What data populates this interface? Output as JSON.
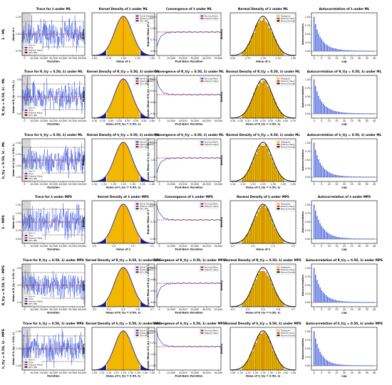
{
  "colors": {
    "trace": "#1f3fd6",
    "burn_in": "#c8c8c8",
    "mean": "#e02020",
    "hpd": "#111111",
    "density_fill": "#f0b800",
    "density_tail": "#1a1a80",
    "density_line": "#2a2aa8",
    "hist_bar": "#e8b000",
    "normal_curve": "#000000",
    "running_mean": "#1f3fd6",
    "acf_bar": "#1f3fd6"
  },
  "row_labels": [
    "λ - ML",
    "R_t(y = 0.50, λ) - ML",
    "h_t(y = 0.50, λ) - ML",
    "λ - MPS",
    "R_t(y = 0.50, λ) - MPS",
    "h_t(y = 0.50, λ) - MPS"
  ],
  "legends": {
    "trace": [
      "Burn-in",
      "Trace",
      "Posterior Mean",
      "95% HPD"
    ],
    "kde": [
      "Kernel Density",
      "Posterior Mean",
      "95% HPD"
    ],
    "conv": [
      "Running Mean",
      "Posterior Mean"
    ],
    "norm": [
      "Histogram",
      "Posterior Mean",
      "Normal Density"
    ]
  },
  "chart_data": [
    {
      "type": "line",
      "panel": "trace",
      "row": 0,
      "title": "Trace for λ under ML",
      "xlabel": "Iteration",
      "ylabel": "Value of λ",
      "x_ticks": [
        "0",
        "10,000",
        "20,000",
        "30,000",
        "40,000",
        "50,000",
        "60,000"
      ],
      "y_ticks": [
        "0.75",
        "1.00",
        "1.25"
      ],
      "mean": 1.05,
      "hpd": [
        0.82,
        1.3
      ]
    },
    {
      "type": "area",
      "panel": "kde",
      "row": 0,
      "title": "Kernel Density of λ under ML",
      "xlabel": "Value of λ",
      "ylabel": "Density",
      "x_ticks": [
        "0.50",
        "0.75",
        "1.00",
        "1.25",
        "1.50"
      ],
      "mean": 1.05,
      "hpd": [
        0.82,
        1.3
      ]
    },
    {
      "type": "line",
      "panel": "conv",
      "row": 0,
      "title": "Convergence of λ under ML",
      "xlabel": "Post-Burn Iteration",
      "ylabel": "Ergodic Mean of λ",
      "x_ticks": [
        "0",
        "10,000",
        "20,000",
        "30,000",
        "40,000",
        "50,000"
      ],
      "y_ticks": [
        "0.50",
        "0.75",
        "1.00",
        "1.25"
      ],
      "mean": 1.05
    },
    {
      "type": "bar",
      "panel": "norm",
      "row": 0,
      "title": "Normal Density of λ under ML",
      "xlabel": "Value of λ",
      "ylabel": "Density",
      "x_ticks": [
        "0.50",
        "0.75",
        "1.00",
        "1.25",
        "1.50"
      ],
      "mean": 1.05
    },
    {
      "type": "bar",
      "panel": "acf",
      "row": 0,
      "title": "Autocorrelation of λ under ML",
      "xlabel": "Lag",
      "ylabel": "Autocorrelation",
      "x_ticks": [
        "0",
        "5",
        "10",
        "15",
        "20",
        "25",
        "30",
        "35",
        "40"
      ],
      "y_ticks": [
        "0.00",
        "0.25",
        "0.50",
        "0.75",
        "1.00"
      ],
      "values": [
        1.0,
        0.78,
        0.62,
        0.5,
        0.41,
        0.34,
        0.28,
        0.23,
        0.19,
        0.16,
        0.13,
        0.11,
        0.09,
        0.08,
        0.07,
        0.06,
        0.05,
        0.04,
        0.035,
        0.03,
        0.025,
        0.02,
        0.018,
        0.015,
        0.013,
        0.011,
        0.01,
        0.009,
        0.008,
        0.007,
        0.006,
        0.005,
        0.005,
        0.004,
        0.004,
        0.003,
        0.003,
        0.003,
        0.002,
        0.002,
        0.002
      ]
    },
    {
      "type": "line",
      "panel": "trace",
      "row": 1,
      "title": "Trace for R_t(y = 0.50, λ) under ML",
      "xlabel": "Iteration",
      "ylabel": "Value of R_t(y = 0.50, λ)",
      "x_ticks": [
        "0",
        "10,000",
        "20,000",
        "30,000",
        "40,000",
        "50,000",
        "60,000"
      ],
      "y_ticks": [
        "0.4",
        "0.5",
        "0.6"
      ],
      "mean": 0.47,
      "hpd": [
        0.4,
        0.55
      ]
    },
    {
      "type": "area",
      "panel": "kde",
      "row": 1,
      "title": "Kernel Density of R_t(y = 0.50, λ) under ML",
      "xlabel": "Value of R_t(y = 0.50, λ)",
      "ylabel": "Density",
      "x_ticks": [
        "0.30",
        "0.35",
        "0.40",
        "0.45",
        "0.50",
        "0.55",
        "0.60",
        "0.65"
      ],
      "mean": 0.47,
      "hpd": [
        0.4,
        0.55
      ]
    },
    {
      "type": "line",
      "panel": "conv",
      "row": 1,
      "title": "Convergence of R_t(y = 0.50, λ) under ML",
      "xlabel": "Post-Burn Iteration",
      "ylabel": "Ergodic Mean of R_t(y = 0.50, λ)",
      "x_ticks": [
        "0",
        "10,000",
        "20,000",
        "30,000",
        "40,000",
        "50,000"
      ],
      "y_ticks": [
        "0.45",
        "0.50",
        "0.55",
        "0.60"
      ],
      "mean": 0.47
    },
    {
      "type": "bar",
      "panel": "norm",
      "row": 1,
      "title": "Normal Density of R_t(y = 0.50, λ) under ML",
      "xlabel": "Value of R_t(y = 0.50, λ)",
      "ylabel": "Density",
      "x_ticks": [
        "0.30",
        "0.35",
        "0.40",
        "0.45",
        "0.50",
        "0.55",
        "0.60",
        "0.65",
        "0.70"
      ],
      "mean": 0.47
    },
    {
      "type": "bar",
      "panel": "acf",
      "row": 1,
      "title": "Autocorrelation of R_t(y = 0.50, λ) under ML",
      "xlabel": "Lag",
      "ylabel": "Autocorrelation",
      "x_ticks": [
        "0",
        "5",
        "10",
        "15",
        "20",
        "25",
        "30",
        "35",
        "40"
      ],
      "y_ticks": [
        "0.00",
        "0.25",
        "0.50",
        "0.75",
        "1.00"
      ],
      "values": [
        1.0,
        0.8,
        0.64,
        0.52,
        0.42,
        0.35,
        0.29,
        0.24,
        0.2,
        0.17,
        0.14,
        0.12,
        0.1,
        0.085,
        0.072,
        0.062,
        0.053,
        0.045,
        0.038,
        0.033,
        0.028,
        0.024,
        0.02,
        0.017,
        0.015,
        0.013,
        0.011,
        0.01,
        0.009,
        0.008,
        0.007,
        0.006,
        0.005,
        0.005,
        0.004,
        0.004,
        0.003,
        0.003,
        0.003,
        0.002,
        0.002
      ]
    },
    {
      "type": "line",
      "panel": "trace",
      "row": 2,
      "title": "Trace for h_t(y = 0.50, λ) under ML",
      "xlabel": "Iteration",
      "ylabel": "Value of h_t(y = 0.50, λ)",
      "x_ticks": [
        "0",
        "10,000",
        "20,000",
        "30,000",
        "40,000",
        "50,000",
        "60,000"
      ],
      "y_ticks": [
        "1.15",
        "1.20",
        "1.25",
        "1.30"
      ],
      "mean": 1.22,
      "hpd": [
        1.15,
        1.29
      ]
    },
    {
      "type": "area",
      "panel": "kde",
      "row": 2,
      "title": "Kernel Density of h_t(y = 0.50, λ) under ML",
      "xlabel": "Value of h_t(y = 0.50, λ)",
      "ylabel": "Density",
      "x_ticks": [
        "1.10",
        "1.15",
        "1.20",
        "1.25",
        "1.30",
        "1.35",
        "1.40"
      ],
      "mean": 1.22,
      "hpd": [
        1.15,
        1.29
      ]
    },
    {
      "type": "line",
      "panel": "conv",
      "row": 2,
      "title": "Convergence of h_t(y = 0.50, λ) under ML",
      "xlabel": "Post-Burn Iteration",
      "ylabel": "Ergodic Mean of h_t(y = 0.50, λ)",
      "x_ticks": [
        "0",
        "10,000",
        "20,000",
        "30,000",
        "40,000",
        "50,000"
      ],
      "y_ticks": [
        "1.20",
        "1.22",
        "1.24"
      ],
      "mean": 1.22
    },
    {
      "type": "bar",
      "panel": "norm",
      "row": 2,
      "title": "Normal Density of h_t(y = 0.50, λ) under ML",
      "xlabel": "Value of h_t(y = 0.50, λ)",
      "ylabel": "Density",
      "x_ticks": [
        "1.10",
        "1.15",
        "1.20",
        "1.25",
        "1.30",
        "1.35",
        "1.40"
      ],
      "mean": 1.22
    },
    {
      "type": "bar",
      "panel": "acf",
      "row": 2,
      "title": "Autocorrelation of h_t(y = 0.50, λ) under ML",
      "xlabel": "Lag",
      "ylabel": "Autocorrelation",
      "x_ticks": [
        "0",
        "5",
        "10",
        "15",
        "20",
        "25",
        "30",
        "35",
        "40"
      ],
      "y_ticks": [
        "0.00",
        "0.25",
        "0.50",
        "0.75",
        "1.00"
      ],
      "values": [
        1.0,
        0.79,
        0.63,
        0.51,
        0.41,
        0.34,
        0.28,
        0.23,
        0.19,
        0.16,
        0.13,
        0.11,
        0.09,
        0.075,
        0.063,
        0.053,
        0.045,
        0.038,
        0.032,
        0.027,
        0.023,
        0.019,
        0.016,
        0.014,
        0.012,
        0.01,
        0.009,
        0.008,
        0.007,
        0.006,
        0.005,
        0.005,
        0.004,
        0.004,
        0.003,
        0.003,
        0.003,
        0.002,
        0.002,
        0.002,
        0.002
      ]
    },
    {
      "type": "line",
      "panel": "trace",
      "row": 3,
      "title": "Trace for λ under MPS",
      "xlabel": "Iteration",
      "ylabel": "Value of λ",
      "x_ticks": [
        "0",
        "10,000",
        "20,000",
        "30,000",
        "40,000",
        "50,000",
        "60,000"
      ],
      "y_ticks": [
        "0.50",
        "0.75",
        "1.00",
        "1.25",
        "1.50"
      ],
      "mean": 0.98,
      "hpd": [
        0.72,
        1.25
      ]
    },
    {
      "type": "area",
      "panel": "kde",
      "row": 3,
      "title": "Kernel Density of λ under MPS",
      "xlabel": "Value of λ",
      "ylabel": "Density",
      "x_ticks": [
        "0.5",
        "1.0",
        "1.5",
        "2.0"
      ],
      "mean": 0.98,
      "hpd": [
        0.72,
        1.25
      ]
    },
    {
      "type": "line",
      "panel": "conv",
      "row": 3,
      "title": "Convergence of λ under MPS",
      "xlabel": "Post-Burn Iteration",
      "ylabel": "Ergodic Mean of λ",
      "x_ticks": [
        "0",
        "10,000",
        "20,000",
        "30,000",
        "40,000",
        "50,000"
      ],
      "y_ticks": [
        "0.50",
        "0.75",
        "1.00"
      ],
      "mean": 0.98
    },
    {
      "type": "bar",
      "panel": "norm",
      "row": 3,
      "title": "Normal Density of λ under MPS",
      "xlabel": "Value of λ",
      "ylabel": "Density",
      "x_ticks": [
        "0.5",
        "1.0",
        "1.5",
        "2.0"
      ],
      "mean": 0.98
    },
    {
      "type": "bar",
      "panel": "acf",
      "row": 3,
      "title": "Autocorrelation of λ under MPS",
      "xlabel": "Lag",
      "ylabel": "Autocorrelation",
      "x_ticks": [
        "0",
        "5",
        "10",
        "15",
        "20",
        "25",
        "30",
        "35",
        "40"
      ],
      "y_ticks": [
        "0.00",
        "0.25",
        "0.50",
        "0.75",
        "1.00"
      ],
      "values": [
        1.0,
        0.82,
        0.67,
        0.55,
        0.45,
        0.37,
        0.31,
        0.26,
        0.21,
        0.18,
        0.15,
        0.12,
        0.1,
        0.085,
        0.07,
        0.06,
        0.05,
        0.042,
        0.035,
        0.03,
        0.025,
        0.021,
        0.018,
        0.015,
        0.013,
        0.011,
        0.009,
        0.008,
        0.007,
        0.006,
        0.005,
        0.005,
        0.004,
        0.004,
        0.003,
        0.003,
        0.003,
        0.002,
        0.002,
        0.002,
        0.002
      ]
    },
    {
      "type": "line",
      "panel": "trace",
      "row": 4,
      "title": "Trace for R_t(y = 0.50, λ) under MPS",
      "xlabel": "Iteration",
      "ylabel": "Value of R_t(y = 0.50, λ)",
      "x_ticks": [
        "0",
        "10,000",
        "20,000",
        "30,000",
        "40,000",
        "50,000",
        "60,000"
      ],
      "y_ticks": [
        "0.4",
        "0.5",
        "0.6"
      ],
      "mean": 0.49,
      "hpd": [
        0.41,
        0.57
      ]
    },
    {
      "type": "area",
      "panel": "kde",
      "row": 4,
      "title": "Kernel Density of R_t(y = 0.50, λ) under MPS",
      "xlabel": "Value of R_t(y = 0.50, λ)",
      "ylabel": "Density",
      "x_ticks": [
        "0.3",
        "0.4",
        "0.5",
        "0.6",
        "0.7"
      ],
      "mean": 0.49,
      "hpd": [
        0.41,
        0.57
      ]
    },
    {
      "type": "line",
      "panel": "conv",
      "row": 4,
      "title": "Convergence of R_t(y = 0.50, λ) under MPS",
      "xlabel": "Post-Burn Iteration",
      "ylabel": "Ergodic Mean of R_t(y = 0.50, λ)",
      "x_ticks": [
        "0",
        "10,000",
        "20,000",
        "30,000",
        "40,000",
        "50,000"
      ],
      "y_ticks": [
        "0.50",
        "0.55",
        "0.60",
        "0.65"
      ],
      "mean": 0.49
    },
    {
      "type": "bar",
      "panel": "norm",
      "row": 4,
      "title": "Normal Density of R_t(y = 0.50, λ) under MPS",
      "xlabel": "Value of R_t(y = 0.50, λ)",
      "ylabel": "Density",
      "x_ticks": [
        "0.3",
        "0.4",
        "0.5",
        "0.6",
        "0.7"
      ],
      "mean": 0.49
    },
    {
      "type": "bar",
      "panel": "acf",
      "row": 4,
      "title": "Autocorrelation of R_t(y = 0.50, λ) under MPS",
      "xlabel": "Lag",
      "ylabel": "Autocorrelation",
      "x_ticks": [
        "0",
        "5",
        "10",
        "15",
        "20",
        "25",
        "30",
        "35",
        "40"
      ],
      "y_ticks": [
        "0.00",
        "0.25",
        "0.50",
        "0.75",
        "1.00"
      ],
      "values": [
        1.0,
        0.8,
        0.65,
        0.53,
        0.43,
        0.35,
        0.29,
        0.24,
        0.2,
        0.16,
        0.13,
        0.11,
        0.09,
        0.075,
        0.062,
        0.052,
        0.043,
        0.036,
        0.03,
        0.025,
        0.021,
        0.018,
        0.015,
        0.013,
        0.011,
        0.009,
        0.008,
        0.007,
        0.006,
        0.005,
        0.005,
        0.004,
        0.004,
        0.003,
        0.003,
        0.003,
        0.002,
        0.002,
        0.002,
        0.002,
        0.001
      ]
    },
    {
      "type": "line",
      "panel": "trace",
      "row": 5,
      "title": "Trace for h_t(y = 0.50, λ) under MPS",
      "xlabel": "Iteration",
      "ylabel": "Value of h_t(y = 0.50, λ)",
      "x_ticks": [
        "0",
        "10,000",
        "20,000",
        "30,000",
        "40,000",
        "50,000",
        "60,000"
      ],
      "y_ticks": [
        "1.20",
        "1.25",
        "1.30"
      ],
      "mean": 1.24,
      "hpd": [
        1.17,
        1.31
      ]
    },
    {
      "type": "area",
      "panel": "kde",
      "row": 5,
      "title": "Kernel Density of h_t(y = 0.50, λ) under MPS",
      "xlabel": "Value of h_t(y = 0.50, λ)",
      "ylabel": "Density",
      "x_ticks": [
        "1.05",
        "1.10",
        "1.15",
        "1.20",
        "1.25",
        "1.30",
        "1.35",
        "1.40",
        "1.45"
      ],
      "mean": 1.24,
      "hpd": [
        1.17,
        1.31
      ]
    },
    {
      "type": "line",
      "panel": "conv",
      "row": 5,
      "title": "Convergence of h_t(y = 0.50, λ) under MPS",
      "xlabel": "Post-Burn Iteration",
      "ylabel": "Ergodic Mean of h_t(y = 0.50, λ)",
      "x_ticks": [
        "0",
        "10,000",
        "20,000",
        "30,000",
        "40,000",
        "50,000"
      ],
      "y_ticks": [
        "1.20",
        "1.22",
        "1.24",
        "1.26"
      ],
      "mean": 1.24
    },
    {
      "type": "bar",
      "panel": "norm",
      "row": 5,
      "title": "Normal Density of h_t(y = 0.50, λ) under MPS",
      "xlabel": "Value of h_t(y = 0.50, λ)",
      "ylabel": "Density",
      "x_ticks": [
        "1.05",
        "1.10",
        "1.15",
        "1.20",
        "1.25",
        "1.30",
        "1.35",
        "1.40",
        "1.45"
      ],
      "mean": 1.24
    },
    {
      "type": "bar",
      "panel": "acf",
      "row": 5,
      "title": "Autocorrelation of h_t(y = 0.50, λ) under MPS",
      "xlabel": "Lag",
      "ylabel": "Autocorrelation",
      "x_ticks": [
        "0",
        "5",
        "10",
        "15",
        "20",
        "25",
        "30",
        "35",
        "40"
      ],
      "y_ticks": [
        "0.00",
        "0.25",
        "0.50",
        "0.75",
        "1.00"
      ],
      "values": [
        1.0,
        0.79,
        0.63,
        0.5,
        0.4,
        0.32,
        0.26,
        0.21,
        0.17,
        0.14,
        0.11,
        0.09,
        0.075,
        0.062,
        0.051,
        0.042,
        0.035,
        0.029,
        0.024,
        0.02,
        0.017,
        0.014,
        0.012,
        0.01,
        0.009,
        0.008,
        0.007,
        0.006,
        0.005,
        0.005,
        0.004,
        0.004,
        0.003,
        0.003,
        0.003,
        0.002,
        0.002,
        0.002,
        0.002,
        0.001,
        0.001
      ]
    }
  ]
}
